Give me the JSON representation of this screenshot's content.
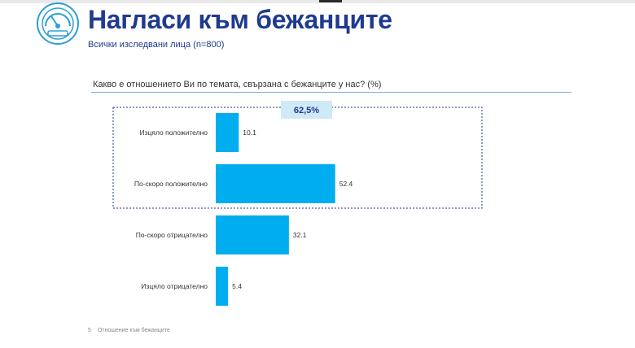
{
  "header": {
    "title": "Нагласи към бежанците",
    "subtitle": "Всички изследвани лица  (n=800)"
  },
  "question": "Какво е отношението Ви по темата, свързана с бежанците у нас? (%)",
  "highlight": {
    "label": "62,5%"
  },
  "footer": {
    "page": "5",
    "section": "Отношение към бежанците"
  },
  "colors": {
    "bar": "#00aeef",
    "title": "#1f3a8f",
    "highlight_bg": "#cfe9f7",
    "frame": "#1f3a8f"
  },
  "chart_data": {
    "type": "bar",
    "orientation": "horizontal",
    "categories": [
      "Изцяло положително",
      "По-скоро положително",
      "По-скоро отрицателно",
      "Изцяло отрицателно"
    ],
    "values": [
      10.1,
      52.4,
      32.1,
      5.4
    ],
    "value_labels": [
      "10.1",
      "52.4",
      "32.1",
      "5.4"
    ],
    "highlighted_categories": [
      "Изцяло положително",
      "По-скоро положително"
    ],
    "highlight_total_label": "62,5%",
    "xlim": [
      0,
      60
    ],
    "grid": false,
    "legend": "none"
  }
}
